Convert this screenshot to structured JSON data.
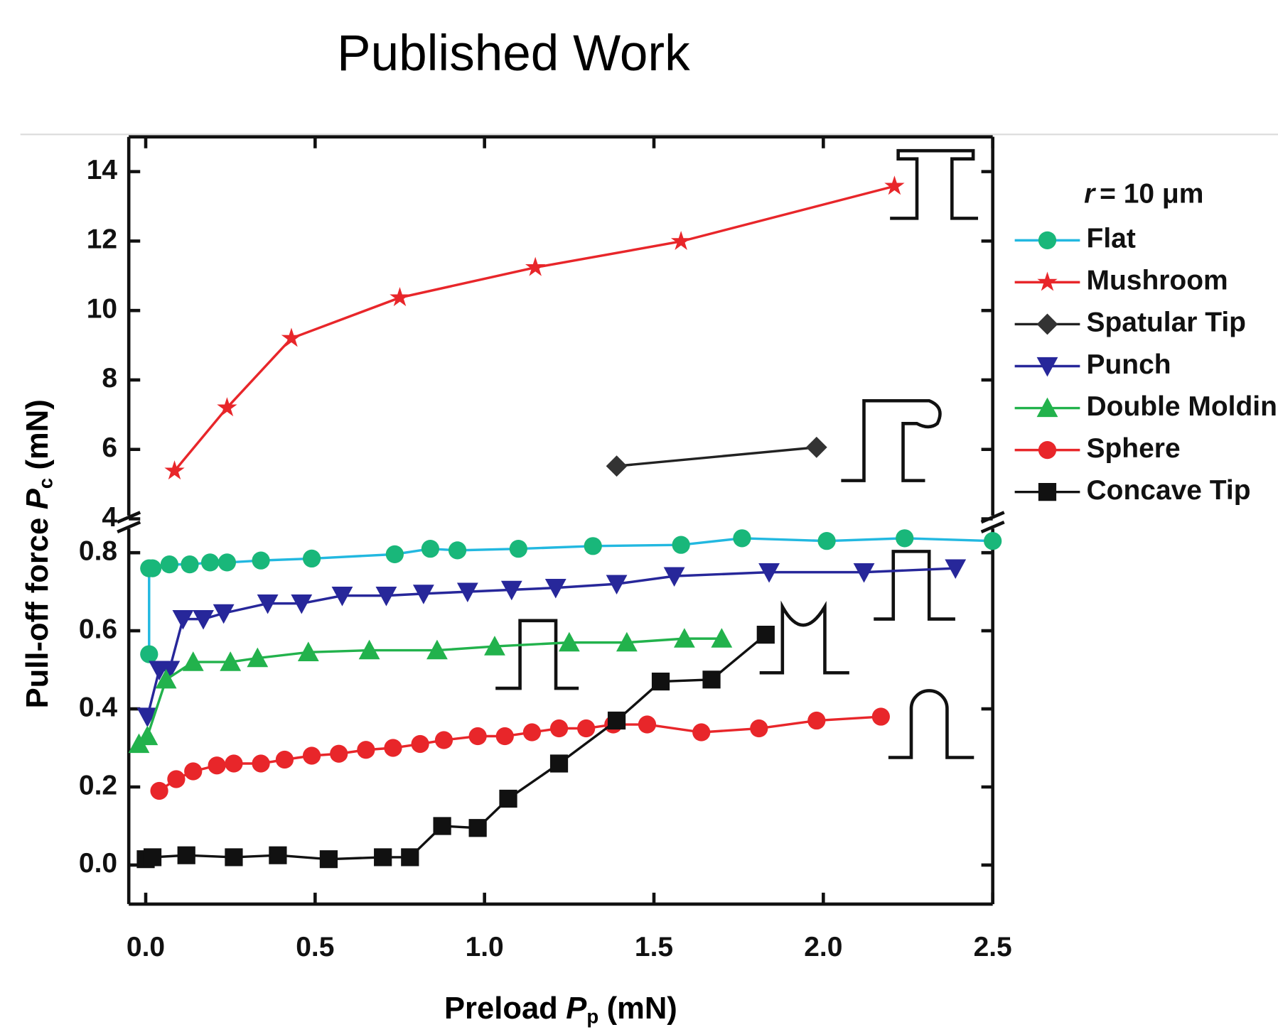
{
  "header": {
    "title": "Published Work"
  },
  "chart_data": {
    "type": "line",
    "xlabel": {
      "text": "Preload",
      "symbol": "P",
      "subscript": "p",
      "unit": "(mN)"
    },
    "ylabel": {
      "text": "Pull-off force",
      "symbol": "P",
      "subscript": "c",
      "unit": "(mN)"
    },
    "legend_title": {
      "symbol": "r",
      "text": "= 10 μm"
    },
    "legend": "right",
    "xlim": [
      -0.05,
      2.5
    ],
    "xticks": [
      {
        "value": 0,
        "label": "0.0"
      },
      0.5,
      {
        "value": 1,
        "label": "1.0"
      },
      1.5,
      {
        "value": 2,
        "label": "2.0"
      },
      2.5
    ],
    "ylim": [
      -0.1,
      0.87
    ],
    "yticks": [
      {
        "value": 0,
        "label": "0.0"
      },
      0.2,
      0.4,
      0.6,
      0.8
    ],
    "y2lim": [
      4,
      15
    ],
    "y2ticks": [
      4,
      6,
      8,
      10,
      12,
      14
    ],
    "series": [
      {
        "name": "Flat",
        "color": "#19b77a",
        "line_color": "#22b8e0",
        "marker": "circle",
        "x": [
          0.01,
          0.01,
          0.02,
          0.07,
          0.13,
          0.19,
          0.24,
          0.34,
          0.49,
          0.735,
          0.84,
          0.92,
          1.1,
          1.32,
          1.58,
          1.76,
          2.01,
          2.24,
          2.5
        ],
        "values": [
          0.54,
          0.76,
          0.76,
          0.77,
          0.77,
          0.775,
          0.775,
          0.78,
          0.785,
          0.796,
          0.81,
          0.806,
          0.81,
          0.817,
          0.82,
          0.837,
          0.83,
          0.837,
          0.83
        ]
      },
      {
        "name": "Mushroom",
        "color": "#e8262a",
        "line_color": "#e8262a",
        "marker": "star",
        "axis": "y2",
        "x": [
          0.085,
          0.24,
          0.43,
          0.75,
          1.15,
          1.58,
          2.21
        ],
        "values": [
          5.38,
          7.2,
          9.2,
          10.37,
          11.24,
          11.99,
          13.58
        ]
      },
      {
        "name": "Spatular Tip",
        "color": "#333333",
        "line_color": "#222222",
        "marker": "diamond",
        "axis": "y2",
        "x": [
          1.39,
          1.98
        ],
        "values": [
          5.52,
          6.06
        ]
      },
      {
        "name": "Punch",
        "color": "#27279a",
        "line_color": "#27279a",
        "marker": "triangle-down",
        "x": [
          0.005,
          0.04,
          0.07,
          0.11,
          0.17,
          0.23,
          0.36,
          0.46,
          0.58,
          0.71,
          0.82,
          0.95,
          1.08,
          1.21,
          1.39,
          1.56,
          1.84,
          2.12,
          2.39
        ],
        "values": [
          0.38,
          0.5,
          0.5,
          0.63,
          0.63,
          0.645,
          0.67,
          0.67,
          0.69,
          0.69,
          0.695,
          0.7,
          0.705,
          0.71,
          0.72,
          0.74,
          0.75,
          0.75,
          0.76
        ]
      },
      {
        "name": "Double Molding",
        "color": "#22b24c",
        "line_color": "#22b24c",
        "marker": "triangle-up",
        "x": [
          -0.02,
          0.005,
          0.06,
          0.14,
          0.25,
          0.33,
          0.48,
          0.66,
          0.86,
          1.03,
          1.25,
          1.42,
          1.59,
          1.7
        ],
        "values": [
          0.31,
          0.33,
          0.475,
          0.52,
          0.52,
          0.53,
          0.545,
          0.55,
          0.55,
          0.56,
          0.57,
          0.57,
          0.58,
          0.58
        ]
      },
      {
        "name": "Sphere",
        "color": "#e8262a",
        "line_color": "#e8262a",
        "marker": "circle",
        "x": [
          0.04,
          0.09,
          0.14,
          0.21,
          0.26,
          0.34,
          0.41,
          0.49,
          0.57,
          0.65,
          0.73,
          0.81,
          0.88,
          0.98,
          1.06,
          1.14,
          1.22,
          1.3,
          1.38,
          1.48,
          1.64,
          1.81,
          1.98,
          2.17
        ],
        "values": [
          0.19,
          0.22,
          0.24,
          0.255,
          0.26,
          0.26,
          0.27,
          0.28,
          0.285,
          0.295,
          0.3,
          0.31,
          0.32,
          0.33,
          0.33,
          0.34,
          0.35,
          0.35,
          0.36,
          0.36,
          0.34,
          0.35,
          0.37,
          0.38
        ]
      },
      {
        "name": "Concave Tip",
        "color": "#111111",
        "line_color": "#111111",
        "marker": "square",
        "x": [
          0,
          0.02,
          0.12,
          0.26,
          0.39,
          0.54,
          0.7,
          0.78,
          0.875,
          0.98,
          1.07,
          1.22,
          1.39,
          1.52,
          1.67,
          1.83
        ],
        "values": [
          0.015,
          0.02,
          0.025,
          0.02,
          0.025,
          0.015,
          0.02,
          0.02,
          0.1,
          0.095,
          0.17,
          0.26,
          0.37,
          0.47,
          0.475,
          0.59
        ]
      }
    ]
  }
}
